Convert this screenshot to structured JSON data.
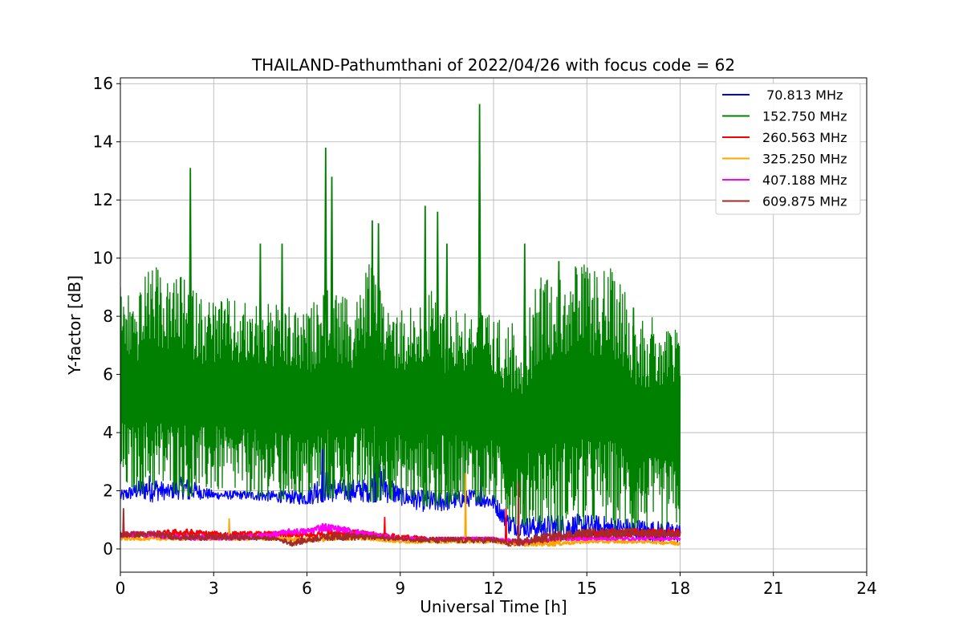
{
  "chart_data": {
    "type": "line",
    "title": "THAILAND-Pathumthani of 2022/04/26 with focus code = 62",
    "xlabel": "Universal Time [h]",
    "ylabel": "Y-factor [dB]",
    "xlim": [
      0,
      24
    ],
    "ylim": [
      -0.8,
      16.2
    ],
    "xticks": [
      0,
      3,
      6,
      9,
      12,
      15,
      18,
      21,
      24
    ],
    "yticks": [
      0,
      2,
      4,
      6,
      8,
      10,
      12,
      14,
      16
    ],
    "grid": true,
    "legend_position": "top-right",
    "series": [
      {
        "name": " 70.813 MHz",
        "color": "#0000ff",
        "style": "baseline",
        "x": [
          0,
          0.5,
          1,
          1.5,
          2,
          3,
          4,
          5,
          6,
          6.5,
          7,
          8,
          8.3,
          9,
          10,
          11,
          11.5,
          12,
          12.5,
          13,
          14,
          15,
          16,
          17,
          18
        ],
        "low": [
          1.6,
          1.7,
          1.6,
          1.7,
          1.7,
          1.7,
          1.7,
          1.6,
          1.5,
          1.6,
          1.6,
          1.6,
          1.6,
          1.5,
          1.2,
          1.4,
          1.5,
          1.3,
          0.5,
          0.4,
          0.3,
          0.3,
          0.3,
          0.2,
          0.2
        ],
        "high": [
          2.0,
          2.3,
          2.6,
          2.2,
          2.5,
          2.0,
          2.0,
          2.0,
          2.0,
          2.8,
          2.4,
          2.4,
          3.1,
          2.1,
          2.0,
          2.0,
          2.1,
          1.9,
          1.2,
          1.1,
          1.2,
          1.2,
          1.1,
          1.0,
          0.9
        ],
        "spikes": [
          {
            "x": 2.2,
            "y": 2.8
          },
          {
            "x": 6.5,
            "y": 3.7
          },
          {
            "x": 8.2,
            "y": 3.2
          },
          {
            "x": 11.6,
            "y": 4.0
          }
        ]
      },
      {
        "name": "152.750 MHz",
        "color": "#008000",
        "style": "band",
        "x": [
          0,
          0.5,
          1,
          1.5,
          2,
          2.5,
          3,
          3.5,
          4,
          4.5,
          5,
          5.5,
          6,
          6.5,
          7,
          7.5,
          8,
          8.5,
          9,
          9.5,
          10,
          10.5,
          11,
          11.5,
          12,
          12.5,
          13,
          13.5,
          14,
          14.5,
          15,
          15.5,
          16,
          16.5,
          17,
          17.5,
          18
        ],
        "low": [
          1.9,
          1.9,
          1.8,
          1.9,
          1.8,
          1.8,
          1.9,
          1.8,
          1.8,
          1.8,
          1.7,
          1.7,
          1.6,
          1.8,
          1.7,
          1.6,
          1.6,
          1.7,
          1.6,
          1.4,
          1.5,
          1.5,
          1.6,
          1.6,
          1.5,
          0.9,
          0.8,
          0.7,
          0.6,
          0.6,
          0.6,
          0.7,
          0.6,
          0.6,
          0.6,
          0.6,
          0.6
        ],
        "high": [
          9.2,
          8.6,
          9.9,
          9.2,
          9.4,
          8.8,
          8.7,
          8.6,
          8.5,
          8.5,
          8.4,
          8.3,
          8.1,
          9.0,
          8.8,
          8.4,
          9.9,
          8.6,
          8.4,
          8.4,
          8.9,
          8.4,
          8.4,
          8.4,
          8.0,
          7.8,
          7.7,
          9.5,
          9.7,
          9.8,
          9.8,
          9.7,
          9.6,
          8.4,
          8.0,
          7.8,
          7.6
        ],
        "spikes": [
          {
            "x": 2.25,
            "y": 13.1
          },
          {
            "x": 4.5,
            "y": 10.5
          },
          {
            "x": 5.2,
            "y": 10.5
          },
          {
            "x": 6.6,
            "y": 13.8
          },
          {
            "x": 6.8,
            "y": 12.8
          },
          {
            "x": 8.1,
            "y": 11.3
          },
          {
            "x": 8.3,
            "y": 11.2
          },
          {
            "x": 9.8,
            "y": 11.8
          },
          {
            "x": 10.2,
            "y": 11.6
          },
          {
            "x": 10.5,
            "y": 10.5
          },
          {
            "x": 11.55,
            "y": 15.3
          },
          {
            "x": 13.0,
            "y": 10.5
          },
          {
            "x": 14.1,
            "y": 9.9
          },
          {
            "x": 16.5,
            "y": 8.3
          }
        ]
      },
      {
        "name": "260.563 MHz",
        "color": "#ff0000",
        "style": "noise",
        "x": [
          0,
          1,
          2,
          3,
          4,
          5,
          6,
          7,
          8,
          9,
          10,
          11,
          12,
          12.5,
          13,
          14,
          15,
          16,
          17,
          18
        ],
        "low": [
          0.4,
          0.4,
          0.4,
          0.4,
          0.4,
          0.4,
          0.3,
          0.4,
          0.4,
          0.3,
          0.3,
          0.3,
          0.3,
          0.1,
          0.1,
          0.2,
          0.3,
          0.4,
          0.4,
          0.4
        ],
        "high": [
          0.6,
          0.6,
          0.7,
          0.6,
          0.6,
          0.6,
          0.6,
          0.7,
          0.6,
          0.5,
          0.4,
          0.4,
          0.4,
          0.3,
          0.3,
          0.5,
          0.6,
          0.7,
          0.7,
          0.7
        ],
        "spikes": [
          {
            "x": 8.5,
            "y": 1.1
          },
          {
            "x": 12.4,
            "y": 1.4
          }
        ]
      },
      {
        "name": "325.250 MHz",
        "color": "#ffa500",
        "style": "noise",
        "x": [
          0,
          1,
          2,
          3,
          4,
          5,
          6,
          7,
          8,
          9,
          10,
          11,
          12,
          13,
          14,
          15,
          16,
          17,
          18
        ],
        "low": [
          0.3,
          0.3,
          0.3,
          0.3,
          0.3,
          0.3,
          0.2,
          0.3,
          0.3,
          0.2,
          0.2,
          0.2,
          0.2,
          0.1,
          0.1,
          0.2,
          0.2,
          0.2,
          0.1
        ],
        "high": [
          0.4,
          0.4,
          0.4,
          0.4,
          0.4,
          0.4,
          0.4,
          0.5,
          0.4,
          0.3,
          0.3,
          0.3,
          0.3,
          0.2,
          0.3,
          0.3,
          0.3,
          0.3,
          0.3
        ],
        "spikes": [
          {
            "x": 3.5,
            "y": 1.05
          },
          {
            "x": 11.1,
            "y": 2.6
          }
        ]
      },
      {
        "name": "407.188 MHz",
        "color": "#ff00ff",
        "style": "noise",
        "x": [
          0,
          1,
          2,
          3,
          4,
          5,
          5.5,
          6,
          6.5,
          7,
          7.5,
          8,
          9,
          10,
          11,
          12,
          13,
          14,
          15,
          16,
          17,
          18
        ],
        "low": [
          0.4,
          0.4,
          0.3,
          0.3,
          0.3,
          0.4,
          0.5,
          0.5,
          0.6,
          0.6,
          0.5,
          0.4,
          0.3,
          0.3,
          0.3,
          0.3,
          0.2,
          0.3,
          0.3,
          0.3,
          0.3,
          0.3
        ],
        "high": [
          0.6,
          0.6,
          0.5,
          0.5,
          0.5,
          0.6,
          0.7,
          0.7,
          0.9,
          0.8,
          0.7,
          0.6,
          0.4,
          0.4,
          0.4,
          0.4,
          0.3,
          0.4,
          0.4,
          0.4,
          0.4,
          0.4
        ],
        "spikes": []
      },
      {
        "name": "609.875 MHz",
        "color": "#a52a2a",
        "style": "noise",
        "x": [
          0,
          1,
          2,
          3,
          4,
          5,
          5.5,
          6,
          6.5,
          7,
          8,
          9,
          10,
          11,
          12,
          12.5,
          13,
          14,
          15,
          16,
          17,
          18
        ],
        "low": [
          0.4,
          0.4,
          0.3,
          0.3,
          0.3,
          0.3,
          0.1,
          0.2,
          0.3,
          0.3,
          0.3,
          0.3,
          0.2,
          0.2,
          0.2,
          0.1,
          0.1,
          0.3,
          0.4,
          0.4,
          0.4,
          0.4
        ],
        "high": [
          0.6,
          0.6,
          0.5,
          0.5,
          0.5,
          0.4,
          0.3,
          0.4,
          0.5,
          0.6,
          0.5,
          0.4,
          0.4,
          0.4,
          0.4,
          0.3,
          0.4,
          0.6,
          0.7,
          0.7,
          0.7,
          0.6
        ],
        "spikes": [
          {
            "x": 0.1,
            "y": 1.4
          },
          {
            "x": 12.8,
            "y": 2.3
          }
        ]
      }
    ]
  }
}
